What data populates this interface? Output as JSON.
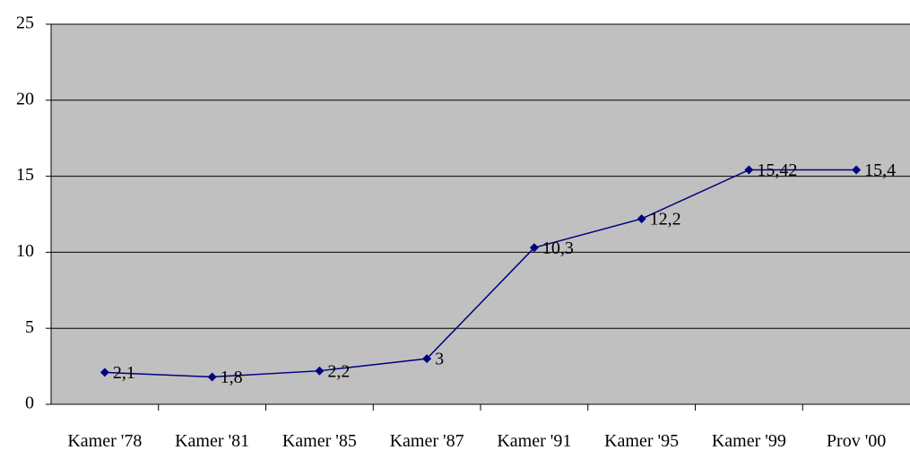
{
  "chart_data": {
    "type": "line",
    "categories": [
      "Kamer '78",
      "Kamer '81",
      "Kamer '85",
      "Kamer '87",
      "Kamer '91",
      "Kamer '95",
      "Kamer '99",
      "Prov '00"
    ],
    "series": [
      {
        "color": "#000080",
        "values": [
          2.1,
          1.8,
          2.2,
          3,
          10.3,
          12.2,
          15.42,
          15.42
        ],
        "value_labels": [
          "2,1",
          "1,8",
          "2,2",
          "3",
          "10,3",
          "12,2",
          "15,42",
          "15,4"
        ]
      }
    ],
    "ylim": [
      0,
      25
    ],
    "yticks": [
      0,
      5,
      10,
      15,
      20,
      25
    ],
    "grid": true,
    "plot_background": "#c0c0c0"
  }
}
